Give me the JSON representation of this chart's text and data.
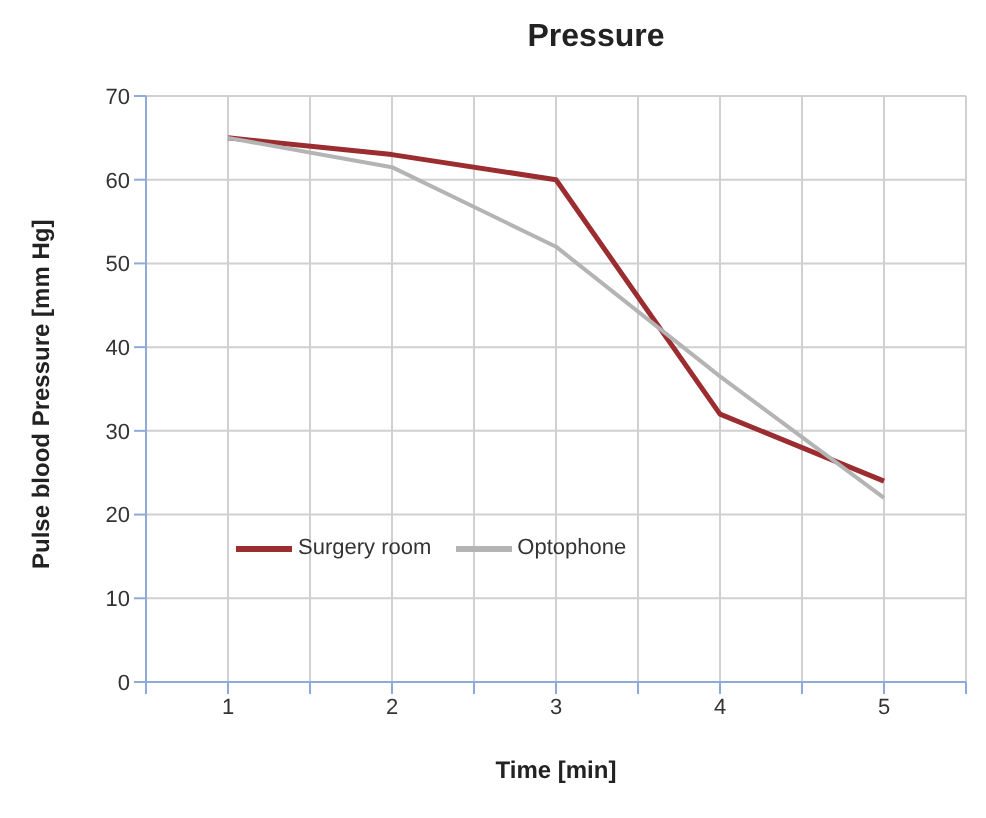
{
  "chart_data": {
    "type": "line",
    "title": "Pressure",
    "xlabel": "Time [min]",
    "ylabel": "Pulse blood Pressure [mm Hg]",
    "x": [
      1,
      2,
      3,
      4,
      5
    ],
    "series": [
      {
        "name": "Surgery room",
        "color": "#9b2d30",
        "values": [
          65,
          63,
          60,
          32,
          24
        ]
      },
      {
        "name": "Optophone",
        "color": "#b4b4b4",
        "values": [
          65,
          61.5,
          52,
          36.5,
          22
        ]
      }
    ],
    "xlim": [
      0.5,
      5.5
    ],
    "xticks": [
      {
        "value": 0.5,
        "label": null
      },
      1,
      {
        "value": 1.5,
        "label": null
      },
      2,
      {
        "value": 2.5,
        "label": null
      },
      3,
      {
        "value": 3.5,
        "label": null
      },
      4,
      {
        "value": 4.5,
        "label": null
      },
      5,
      {
        "value": 5.5,
        "label": null
      }
    ],
    "ylim": [
      0,
      70
    ],
    "yticks": [
      0,
      10,
      20,
      30,
      40,
      50,
      60,
      70
    ],
    "grid": true,
    "legend": "left",
    "marker": "none",
    "line_style": "solid"
  }
}
